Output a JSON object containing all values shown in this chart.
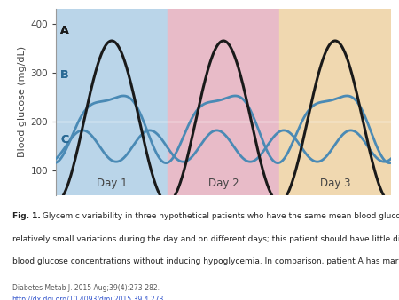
{
  "ylabel": "Blood glucose (mg/dL)",
  "ylim": [
    50,
    430
  ],
  "yticks": [
    100,
    200,
    300,
    400
  ],
  "xlim": [
    0,
    3
  ],
  "bg_day1": "#bad5e9",
  "bg_day2": "#e8bbc8",
  "bg_day3": "#f0d8b0",
  "line_A_color": "#1a1a1a",
  "line_B_color": "#4a8ab5",
  "line_C_color": "#4a8ab5",
  "label_A": "A",
  "label_B": "B",
  "label_C": "C",
  "day_labels": [
    "Day 1",
    "Day 2",
    "Day 3"
  ],
  "day_centers": [
    0.5,
    1.5,
    2.5
  ],
  "caption_bold": "Fig. 1.",
  "caption_normal": " Glycemic variability in three hypothetical patients who have the same mean blood glucose concentration. Patient B has relatively small variations during the day and on different days; this patient should have little difficulty in lowering daily mean blood glucose concentrations without inducing hypoglycemia. In comparison, patient A has marked blood glucose variations on . . .",
  "ref_line1": "Diabetes Metab J. 2015 Aug;39(4):273-282.",
  "ref_line2": "http://dx.doi.org/10.4093/dmj.2015.39.4.273",
  "figsize": [
    4.5,
    3.38
  ],
  "dpi": 100
}
